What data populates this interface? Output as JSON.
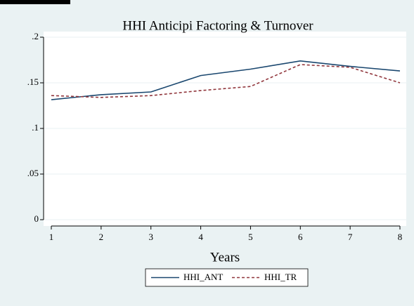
{
  "chart_data": {
    "type": "line",
    "title": "HHI Anticipi Factoring & Turnover",
    "x_label": "Years",
    "x": [
      1,
      2,
      3,
      4,
      5,
      6,
      7,
      8
    ],
    "series": [
      {
        "name": "HHI_ANT",
        "color": "#1a476f",
        "dash": false,
        "values": [
          0.1315,
          0.137,
          0.14,
          0.158,
          0.165,
          0.174,
          0.168,
          0.163
        ]
      },
      {
        "name": "HHI_TR",
        "color": "#90353b",
        "dash": true,
        "values": [
          0.136,
          0.134,
          0.136,
          0.1415,
          0.146,
          0.17,
          0.167,
          0.15
        ]
      }
    ],
    "xlim": [
      1,
      8
    ],
    "xticks": [
      1,
      2,
      3,
      4,
      5,
      6,
      7,
      8
    ],
    "ylim": [
      0,
      0.2
    ],
    "yticks": [
      0,
      {
        "value": 0.05,
        "label": ".05"
      },
      {
        "value": 0.1,
        "label": ".1"
      },
      {
        "value": 0.15,
        "label": ".15"
      },
      {
        "value": 0.2,
        "label": ".2"
      }
    ],
    "grid": true
  }
}
